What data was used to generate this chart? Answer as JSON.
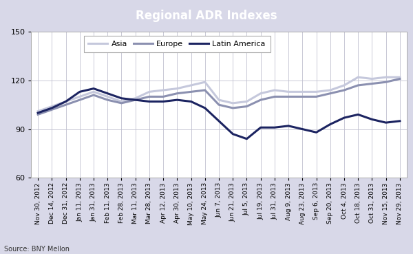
{
  "title": "Regional ADR Indexes",
  "title_bg_color": "#2E2E6E",
  "title_text_color": "#FFFFFF",
  "source_text": "Source: BNY Mellon",
  "ylim": [
    60,
    150
  ],
  "yticks": [
    60,
    90,
    120,
    150
  ],
  "outer_bg_color": "#D8D8E8",
  "plot_bg_color": "#FFFFFF",
  "grid_color": "#C0C0D0",
  "x_labels": [
    "Nov 30, 2012",
    "Dec 14, 2012",
    "Dec 31, 2012",
    "Jan 11, 2013",
    "Jan 31, 2013",
    "Feb 11, 2013",
    "Feb 28, 2013",
    "Mar 11, 2013",
    "Mar 28, 2013",
    "Apr 12, 2013",
    "Apr 30, 2013",
    "May 10, 2013",
    "May 24, 2013",
    "Jun 7, 2013",
    "Jun 21, 2013",
    "Jul 5, 2013",
    "Jul 19, 2013",
    "Jul 31, 2013",
    "Aug 9, 2013",
    "Aug 23, 2013",
    "Sep 6, 2013",
    "Sep 20, 2013",
    "Oct 4, 2013",
    "Oct 18, 2013",
    "Oct 31, 2013",
    "Nov 15, 2013",
    "Nov 29, 2013"
  ],
  "latin_america": [
    100,
    103,
    107,
    113,
    115,
    112,
    109,
    108,
    107,
    107,
    108,
    107,
    103,
    95,
    87,
    84,
    91,
    91,
    92,
    90,
    88,
    93,
    97,
    99,
    96,
    94,
    95
  ],
  "europe": [
    99,
    102,
    105,
    108,
    111,
    108,
    106,
    108,
    110,
    110,
    112,
    113,
    114,
    105,
    103,
    104,
    108,
    110,
    110,
    110,
    110,
    112,
    114,
    117,
    118,
    119,
    121
  ],
  "asia": [
    101,
    104,
    107,
    110,
    113,
    110,
    107,
    109,
    113,
    114,
    115,
    117,
    119,
    108,
    106,
    107,
    112,
    114,
    113,
    113,
    113,
    114,
    117,
    122,
    121,
    122,
    122
  ],
  "latin_america_color": "#1C2461",
  "europe_color": "#8B90B0",
  "asia_color": "#C5C8DC",
  "line_width": 2.2,
  "legend_fontsize": 8,
  "tick_fontsize": 6.5,
  "ytick_fontsize": 8
}
